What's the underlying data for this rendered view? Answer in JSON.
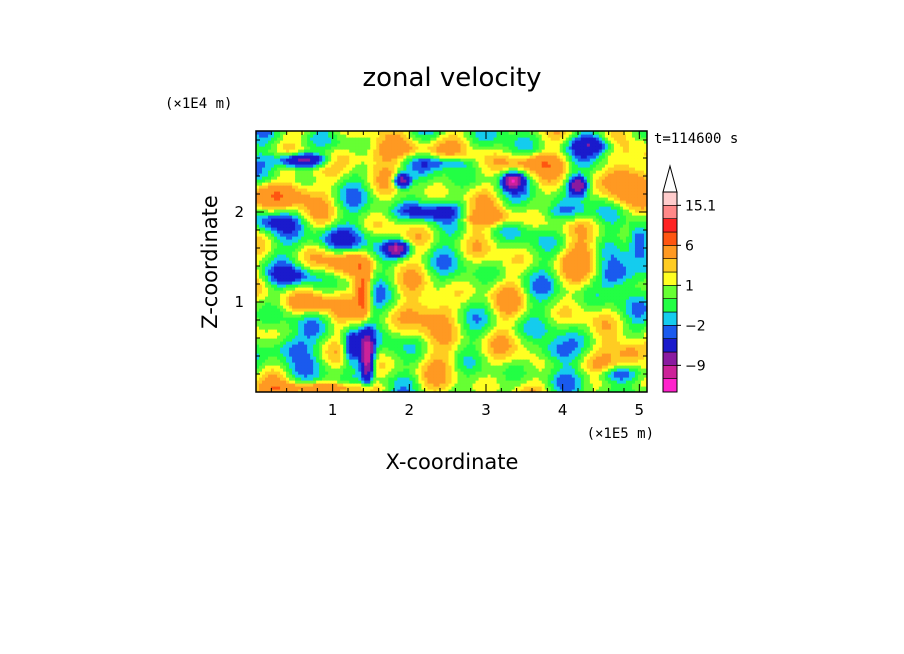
{
  "chart_data": {
    "type": "heatmap",
    "title": "zonal velocity",
    "xlabel": "X-coordinate",
    "ylabel": "Z-coordinate",
    "x_scale_note": "(×1E5 m)",
    "y_scale_note": "(×1E4 m)",
    "time_label": "t=114600 s",
    "xlim": [
      0,
      5.1
    ],
    "ylim": [
      0,
      2.9
    ],
    "x_ticks": [
      "1",
      "2",
      "3",
      "4",
      "5"
    ],
    "x_tick_values": [
      1,
      2,
      3,
      4,
      5
    ],
    "y_ticks": [
      "1",
      "2"
    ],
    "y_tick_values": [
      1,
      2
    ],
    "colorbar": {
      "levels": [
        -15,
        -12,
        -9,
        -6,
        -3,
        -2,
        -1,
        0,
        1,
        2,
        3,
        6,
        9,
        12,
        15.1
      ],
      "colors": [
        "#ff22cc",
        "#cc2299",
        "#8a1aa0",
        "#1a1acc",
        "#1a5aee",
        "#14ccee",
        "#22ff44",
        "#66ff33",
        "#ffff22",
        "#ffcc22",
        "#ff9922",
        "#ff5511",
        "#ff2222",
        "#ff8888",
        "#ffcccc"
      ],
      "labels": [
        "15.1",
        "6",
        "1",
        "−2",
        "−9"
      ],
      "label_values": [
        15.1,
        6,
        1,
        -2,
        -9
      ],
      "max_arrow": true
    },
    "fields": [
      {
        "x": 0.3,
        "z": 2.2,
        "u": 5,
        "sx": 0.45,
        "sz": 0.15
      },
      {
        "x": 0.6,
        "z": 2.58,
        "u": -10,
        "sx": 0.35,
        "sz": 0.08
      },
      {
        "x": 0.25,
        "z": 1.9,
        "u": -3,
        "sx": 0.3,
        "sz": 0.1
      },
      {
        "x": 1.1,
        "z": 2.6,
        "u": 3,
        "sx": 0.6,
        "sz": 0.12
      },
      {
        "x": 1.9,
        "z": 2.35,
        "u": -9,
        "sx": 0.1,
        "sz": 0.08
      },
      {
        "x": 2.0,
        "z": 2.7,
        "u": 3,
        "sx": 0.5,
        "sz": 0.1
      },
      {
        "x": 1.85,
        "z": 1.6,
        "u": -9,
        "sx": 0.15,
        "sz": 0.08
      },
      {
        "x": 1.0,
        "z": 1.7,
        "u": -3,
        "sx": 0.4,
        "sz": 0.15
      },
      {
        "x": 1.2,
        "z": 1.45,
        "u": 4,
        "sx": 0.3,
        "sz": 0.12
      },
      {
        "x": 1.4,
        "z": 1.1,
        "u": 8,
        "sx": 0.1,
        "sz": 0.25
      },
      {
        "x": 1.45,
        "z": 0.4,
        "u": -12,
        "sx": 0.08,
        "sz": 0.25
      },
      {
        "x": 1.25,
        "z": 0.5,
        "u": -6,
        "sx": 0.12,
        "sz": 0.2
      },
      {
        "x": 0.4,
        "z": 0.5,
        "u": -4,
        "sx": 0.25,
        "sz": 0.15
      },
      {
        "x": 0.7,
        "z": 1.0,
        "u": 4,
        "sx": 0.3,
        "sz": 0.12
      },
      {
        "x": 2.3,
        "z": 0.9,
        "u": 3,
        "sx": 0.4,
        "sz": 0.2
      },
      {
        "x": 2.3,
        "z": 2.0,
        "u": -4,
        "sx": 0.5,
        "sz": 0.1
      },
      {
        "x": 2.9,
        "z": 1.6,
        "u": 0,
        "sx": 0.6,
        "sz": 0.5
      },
      {
        "x": 3.3,
        "z": 0.8,
        "u": 0,
        "sx": 0.5,
        "sz": 0.4
      },
      {
        "x": 3.35,
        "z": 2.35,
        "u": -10,
        "sx": 0.12,
        "sz": 0.08
      },
      {
        "x": 3.6,
        "z": 2.55,
        "u": 4,
        "sx": 0.4,
        "sz": 0.1
      },
      {
        "x": 3.0,
        "z": 1.95,
        "u": 4,
        "sx": 0.5,
        "sz": 0.1
      },
      {
        "x": 4.2,
        "z": 2.3,
        "u": -9,
        "sx": 0.12,
        "sz": 0.1
      },
      {
        "x": 4.4,
        "z": 2.75,
        "u": -5,
        "sx": 0.3,
        "sz": 0.1
      },
      {
        "x": 4.8,
        "z": 2.3,
        "u": 5,
        "sx": 0.25,
        "sz": 0.3
      },
      {
        "x": 5.0,
        "z": 1.7,
        "u": -6,
        "sx": 0.15,
        "sz": 0.2
      },
      {
        "x": 4.7,
        "z": 1.3,
        "u": -4,
        "sx": 0.25,
        "sz": 0.15
      },
      {
        "x": 4.9,
        "z": 0.45,
        "u": 6,
        "sx": 0.25,
        "sz": 0.15
      },
      {
        "x": 4.7,
        "z": 0.2,
        "u": -4,
        "sx": 0.3,
        "sz": 0.08
      },
      {
        "x": 3.9,
        "z": 0.45,
        "u": -3,
        "sx": 0.25,
        "sz": 0.12
      },
      {
        "x": 4.3,
        "z": 1.5,
        "u": 3,
        "sx": 0.3,
        "sz": 0.2
      },
      {
        "x": 2.7,
        "z": 0.4,
        "u": 1.5,
        "sx": 0.6,
        "sz": 0.2
      },
      {
        "x": 3.3,
        "z": 1.1,
        "u": 1.5,
        "sx": 0.2,
        "sz": 0.2
      },
      {
        "x": 0.8,
        "z": 0.05,
        "u": 4,
        "sx": 0.8,
        "sz": 0.06
      },
      {
        "x": 0.5,
        "z": 1.3,
        "u": -3,
        "sx": 0.3,
        "sz": 0.1
      },
      {
        "x": 4.0,
        "z": 2.0,
        "u": -3,
        "sx": 0.4,
        "sz": 0.1
      },
      {
        "x": 2.5,
        "z": 2.55,
        "u": -3,
        "sx": 0.3,
        "sz": 0.07
      }
    ]
  }
}
